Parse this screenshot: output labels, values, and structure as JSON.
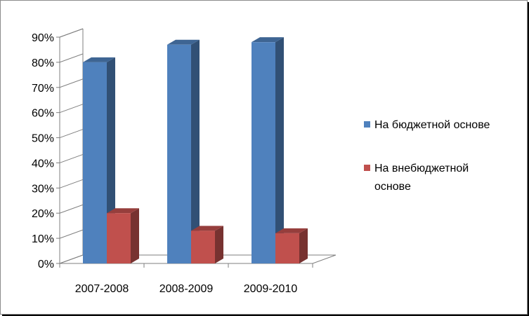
{
  "chart_data": {
    "type": "bar",
    "categories": [
      "2007-2008",
      "2008-2009",
      "2009-2010"
    ],
    "series": [
      {
        "name": "На бюджетной основе",
        "values": [
          80,
          87,
          88
        ],
        "color": "#4f81bd"
      },
      {
        "name": "На внебюджетной основе",
        "values": [
          20,
          13,
          12
        ],
        "color": "#c0504d"
      }
    ],
    "y_ticks": [
      "0%",
      "10%",
      "20%",
      "30%",
      "40%",
      "50%",
      "60%",
      "70%",
      "80%",
      "90%"
    ],
    "ylim": [
      0,
      90
    ],
    "title": "",
    "xlabel": "",
    "ylabel": "",
    "grid": false,
    "legend_position": "right",
    "legend_lines": [
      [
        "На бюджетной основе"
      ],
      [
        "На внебюджетной",
        "основе"
      ]
    ]
  }
}
